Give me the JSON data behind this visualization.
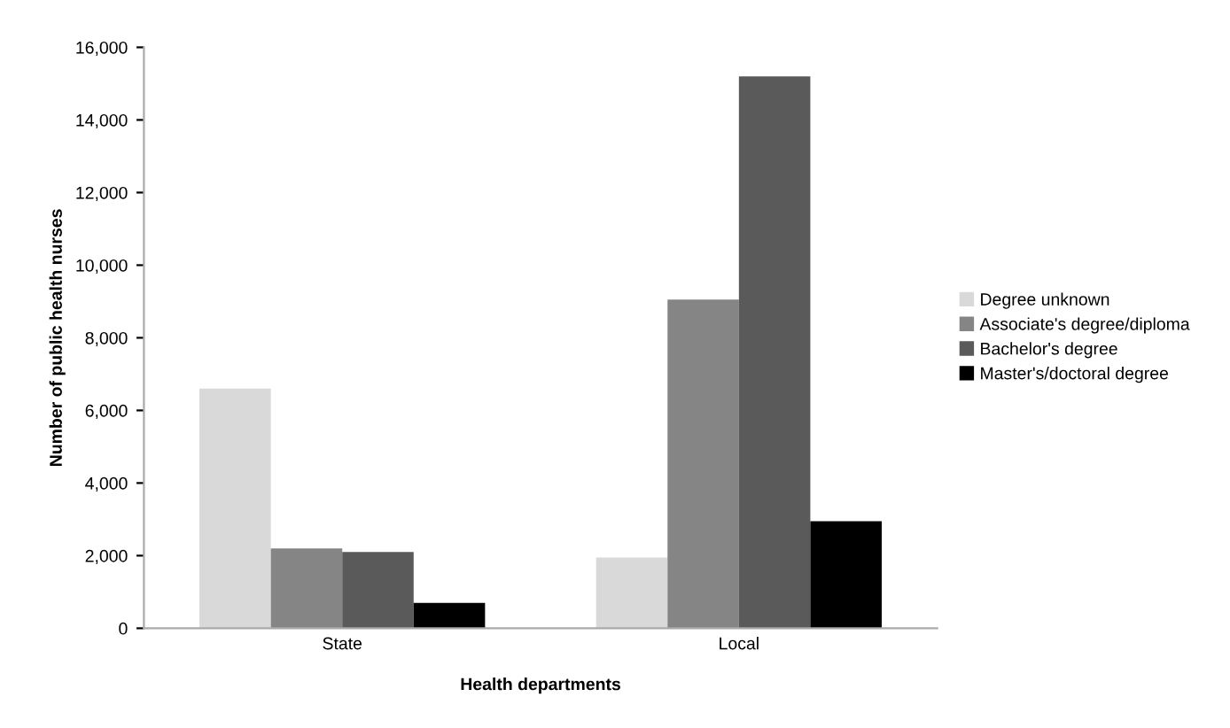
{
  "chart_data": {
    "type": "bar",
    "xlabel": "Health departments",
    "ylabel": "Number of public health nurses",
    "categories": [
      "State",
      "Local"
    ],
    "series": [
      {
        "name": "Degree unknown",
        "color": "#d9d9d9",
        "values": [
          6600,
          1950
        ]
      },
      {
        "name": "Associate's degree/diploma",
        "color": "#858585",
        "values": [
          2200,
          9050
        ]
      },
      {
        "name": "Bachelor's degree",
        "color": "#5a5a5a",
        "values": [
          2100,
          15200
        ]
      },
      {
        "name": "Master's/doctoral degree",
        "color": "#000000",
        "values": [
          700,
          2950
        ]
      }
    ],
    "ylim": [
      0,
      16000
    ],
    "yticks": [
      {
        "value": 0,
        "label": "0"
      },
      {
        "value": 2000,
        "label": "2,000"
      },
      {
        "value": 4000,
        "label": "4,000"
      },
      {
        "value": 6000,
        "label": "6,000"
      },
      {
        "value": 8000,
        "label": "8,000"
      },
      {
        "value": 10000,
        "label": "10,000"
      },
      {
        "value": 12000,
        "label": "12,000"
      },
      {
        "value": 14000,
        "label": "14,000"
      },
      {
        "value": 16000,
        "label": "16,000"
      }
    ],
    "grid": false,
    "legend": "right"
  }
}
